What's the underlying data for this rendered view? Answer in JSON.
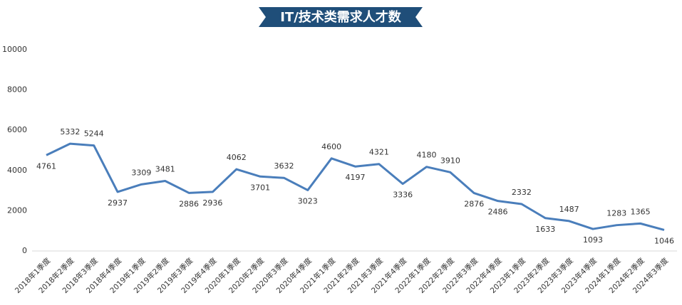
{
  "chart_data": {
    "type": "line",
    "title": "IT/技术类需求人才数",
    "categories": [
      "2018年1季度",
      "2018年2季度",
      "2018年3季度",
      "2018年4季度",
      "2019年1季度",
      "2019年2季度",
      "2019年3季度",
      "2019年4季度",
      "2020年1季度",
      "2020年2季度",
      "2020年3季度",
      "2020年4季度",
      "2021年1季度",
      "2021年2季度",
      "2021年3季度",
      "2021年4季度",
      "2022年1季度",
      "2022年2季度",
      "2022年3季度",
      "2022年4季度",
      "2023年1季度",
      "2023年2季度",
      "2023年3季度",
      "2023年4季度",
      "2024年1季度",
      "2024年2季度",
      "2024年3季度"
    ],
    "values": [
      4761,
      5332,
      5244,
      2937,
      3309,
      3481,
      2886,
      2936,
      4062,
      3701,
      3632,
      3023,
      4600,
      4197,
      4321,
      3336,
      4180,
      3910,
      2876,
      2486,
      2332,
      1633,
      1487,
      1093,
      1283,
      1365,
      1046
    ],
    "color": "#4a7ebb",
    "ylim": [
      0,
      10000
    ],
    "yticks": [
      0,
      2000,
      4000,
      6000,
      8000,
      10000
    ],
    "grid": false
  }
}
